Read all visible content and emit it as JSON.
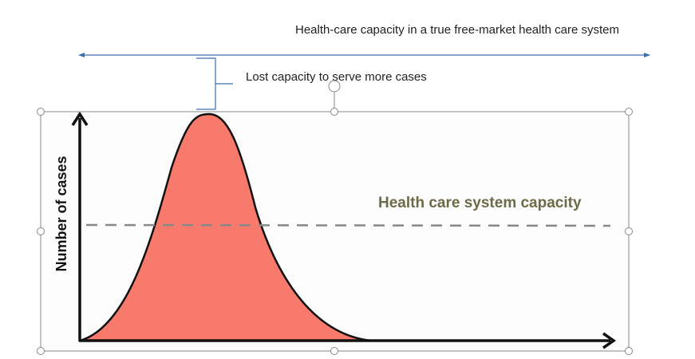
{
  "annotations": {
    "top_label": "Health-care capacity in a true free-market health care system",
    "bracket_label": "Lost capacity to serve more cases"
  },
  "image": {
    "capacity_label": "Health care system capacity",
    "y_axis_label": "Number of cases"
  }
}
